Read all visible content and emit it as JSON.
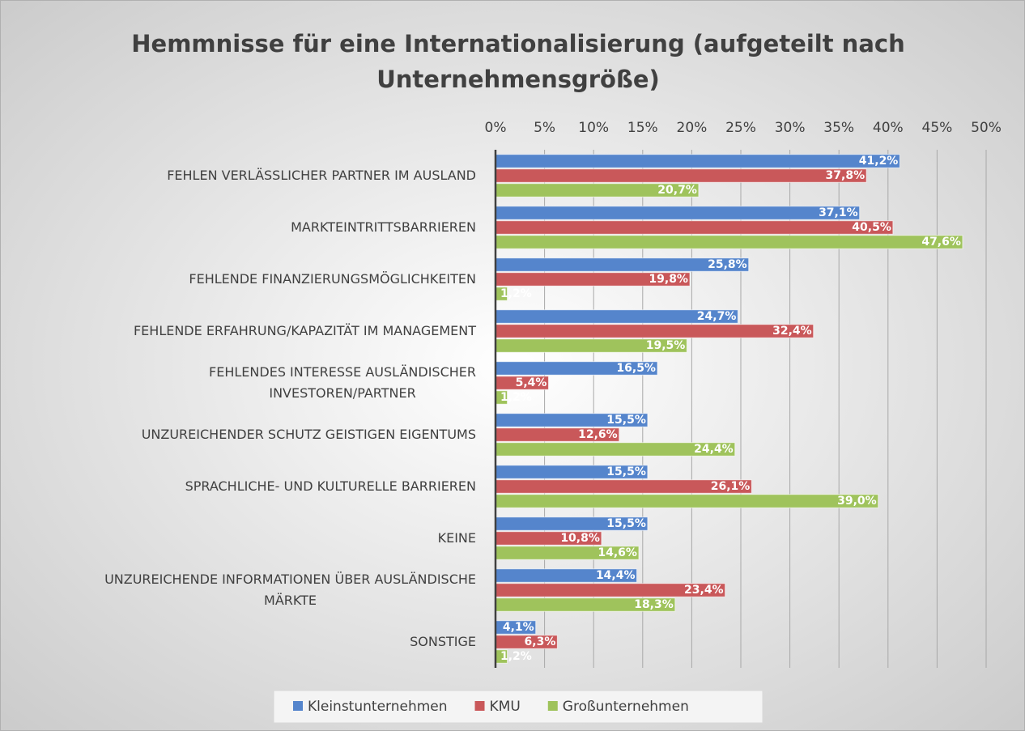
{
  "chart_data": {
    "type": "bar",
    "orientation": "horizontal",
    "title": "Hemmnisse für eine Internationalisierung (aufgeteilt nach Unternehmensgröße)",
    "categories": [
      "FEHLEN VERLÄSSLICHER PARTNER IM AUSLAND",
      "MARKTEINTRITTSBARRIEREN",
      "FEHLENDE FINANZIERUNGSMÖGLICHKEITEN",
      "FEHLENDE ERFAHRUNG/KAPAZITÄT IM MANAGEMENT",
      "FEHLENDES INTERESSE AUSLÄNDISCHER INVESTOREN/PARTNER",
      "UNZUREICHENDER SCHUTZ GEISTIGEN EIGENTUMS",
      "SPRACHLICHE- UND KULTURELLE BARRIEREN",
      "KEINE",
      "UNZUREICHENDE INFORMATIONEN ÜBER AUSLÄNDISCHE MÄRKTE",
      "SONSTIGE"
    ],
    "series": [
      {
        "name": "Kleinstunternehmen",
        "color": "#5585cc",
        "values": [
          41.2,
          37.1,
          25.8,
          24.7,
          16.5,
          15.5,
          15.5,
          15.5,
          14.4,
          4.1
        ],
        "value_labels": [
          "41,2%",
          "37,1%",
          "25,8%",
          "24,7%",
          "16,5%",
          "15,5%",
          "15,5%",
          "15,5%",
          "14,4%",
          "4,1%"
        ]
      },
      {
        "name": "KMU",
        "color": "#c9585a",
        "values": [
          37.8,
          40.5,
          19.8,
          32.4,
          5.4,
          12.6,
          26.1,
          10.8,
          23.4,
          6.3
        ],
        "value_labels": [
          "37,8%",
          "40,5%",
          "19,8%",
          "32,4%",
          "5,4%",
          "12,6%",
          "26,1%",
          "10,8%",
          "23,4%",
          "6,3%"
        ]
      },
      {
        "name": "Großunternehmen",
        "color": "#9fc35c",
        "values": [
          20.7,
          47.6,
          1.2,
          19.5,
          1.2,
          24.4,
          39.0,
          14.6,
          18.3,
          1.2
        ],
        "value_labels": [
          "20,7%",
          "47,6%",
          "1,2%",
          "19,5%",
          "1,2%",
          "24,4%",
          "39,0%",
          "14,6%",
          "18,3%",
          "1,2%"
        ]
      }
    ],
    "xlim": [
      0,
      50
    ],
    "xticks": [
      {
        "value": 0,
        "label": "0%"
      },
      {
        "value": 5,
        "label": "5%"
      },
      {
        "value": 10,
        "label": "10%"
      },
      {
        "value": 15,
        "label": "15%"
      },
      {
        "value": 20,
        "label": "20%"
      },
      {
        "value": 25,
        "label": "25%"
      },
      {
        "value": 30,
        "label": "30%"
      },
      {
        "value": 35,
        "label": "35%"
      },
      {
        "value": 40,
        "label": "40%"
      },
      {
        "value": 45,
        "label": "45%"
      },
      {
        "value": 50,
        "label": "50%"
      }
    ],
    "grid": true,
    "legend": "bottom"
  }
}
